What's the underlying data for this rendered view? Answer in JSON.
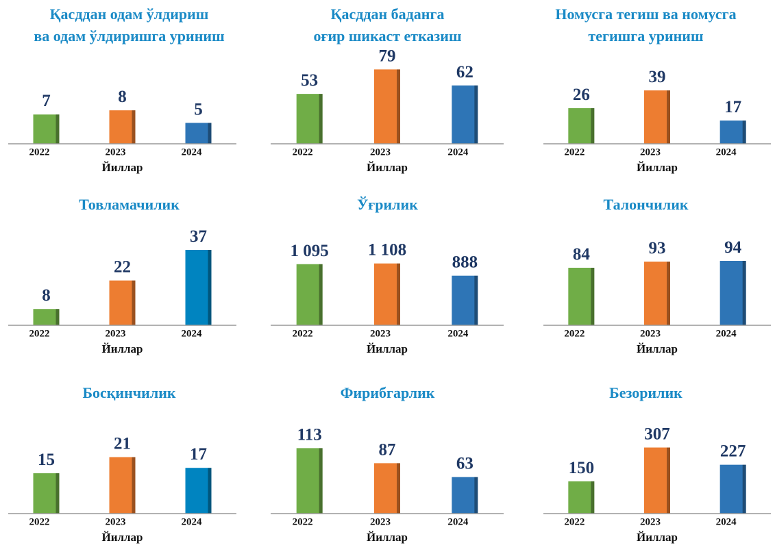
{
  "chart_data": [
    {
      "type": "bar",
      "title": "Қасддан одам ўлдириш\nва одам ўлдиришга уриниш",
      "categories": [
        "2022",
        "2023",
        "2024"
      ],
      "values": [
        7,
        8,
        5
      ],
      "colors": [
        "#70ad47",
        "#ed7d31",
        "#2e75b6"
      ],
      "xlabel": "Йиллар",
      "ylim": [
        0,
        18
      ]
    },
    {
      "type": "bar",
      "title": "Қасддан баданга\nоғир шикаст етказиш",
      "categories": [
        "2022",
        "2023",
        "2024"
      ],
      "values": [
        53,
        79,
        62
      ],
      "colors": [
        "#70ad47",
        "#ed7d31",
        "#2e75b6"
      ],
      "xlabel": "Йиллар",
      "ylim": [
        0,
        80
      ]
    },
    {
      "type": "bar",
      "title": "Номусга тегиш ва номусга\nтегишга уриниш",
      "categories": [
        "2022",
        "2023",
        "2024"
      ],
      "values": [
        26,
        39,
        17
      ],
      "colors": [
        "#70ad47",
        "#ed7d31",
        "#2e75b6"
      ],
      "xlabel": "Йиллар",
      "ylim": [
        0,
        55
      ]
    },
    {
      "type": "bar",
      "title": "Товламачилик",
      "categories": [
        "2022",
        "2023",
        "2024"
      ],
      "values": [
        8,
        22,
        37
      ],
      "colors": [
        "#70ad47",
        "#ed7d31",
        "#0084c0"
      ],
      "xlabel": "Йиллар",
      "ylim": [
        0,
        37
      ]
    },
    {
      "type": "bar",
      "title": "Ўғрилик",
      "categories": [
        "2022",
        "2023",
        "2024"
      ],
      "values": [
        1095,
        1108,
        888
      ],
      "value_labels": [
        "1 095",
        "1 108",
        "888"
      ],
      "colors": [
        "#70ad47",
        "#ed7d31",
        "#2e75b6"
      ],
      "xlabel": "Йиллар",
      "ylim": [
        0,
        1350
      ]
    },
    {
      "type": "bar",
      "title": "Талончилик",
      "categories": [
        "2022",
        "2023",
        "2024"
      ],
      "values": [
        84,
        93,
        94
      ],
      "colors": [
        "#70ad47",
        "#ed7d31",
        "#2e75b6"
      ],
      "xlabel": "Йиллар",
      "ylim": [
        0,
        110
      ]
    },
    {
      "type": "bar",
      "title": "Босқинчилик",
      "categories": [
        "2022",
        "2023",
        "2024"
      ],
      "values": [
        15,
        21,
        17
      ],
      "colors": [
        "#70ad47",
        "#ed7d31",
        "#0084c0"
      ],
      "xlabel": "Йиллар",
      "ylim": [
        0,
        28
      ]
    },
    {
      "type": "bar",
      "title": "Фирибгарлик",
      "categories": [
        "2022",
        "2023",
        "2024"
      ],
      "values": [
        113,
        87,
        63
      ],
      "colors": [
        "#70ad47",
        "#ed7d31",
        "#2e75b6"
      ],
      "xlabel": "Йиллар",
      "ylim": [
        0,
        130
      ]
    },
    {
      "type": "bar",
      "title": "Безорилик",
      "categories": [
        "2022",
        "2023",
        "2024"
      ],
      "values": [
        150,
        307,
        227
      ],
      "colors": [
        "#70ad47",
        "#ed7d31",
        "#2e75b6"
      ],
      "xlabel": "Йиллар",
      "ylim": [
        0,
        350
      ]
    }
  ]
}
